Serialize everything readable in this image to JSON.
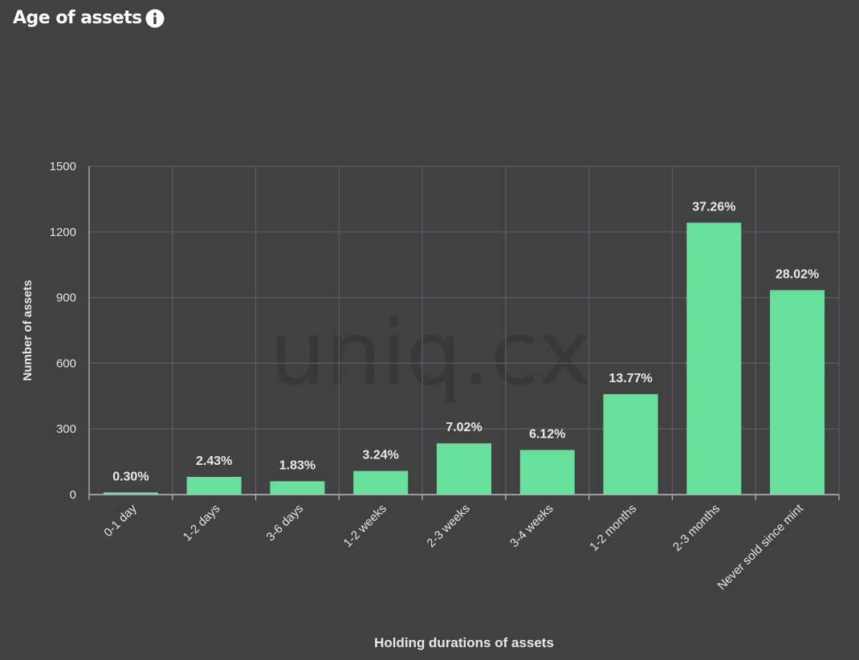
{
  "header": {
    "title": "Age of assets",
    "info_icon": "info-icon"
  },
  "watermark": "uniq.cx",
  "colors": {
    "background": "#414141",
    "bar": "#66e09b",
    "grid": "#5c5c6a",
    "axis": "#b8b8c4",
    "tick_text": "#e4e4e4",
    "label_text": "#e8e8e8",
    "watermark": "#383838"
  },
  "chart_data": {
    "type": "bar",
    "title": "Age of assets",
    "xlabel": "Holding durations of assets",
    "ylabel": "Number of assets",
    "ylim": [
      0,
      1500
    ],
    "yticks": [
      0,
      300,
      600,
      900,
      1200,
      1500
    ],
    "grid": true,
    "categories": [
      "0-1 day",
      "1-2 days",
      "3-6 days",
      "1-2 weeks",
      "2-3 weeks",
      "3-4 weeks",
      "1-2 months",
      "2-3 months",
      "Never sold since mint"
    ],
    "values": [
      10,
      81,
      61,
      108,
      234,
      204,
      459,
      1242,
      934
    ],
    "data_labels": [
      "0.30%",
      "2.43%",
      "1.83%",
      "3.24%",
      "7.02%",
      "6.12%",
      "13.77%",
      "37.26%",
      "28.02%"
    ]
  }
}
